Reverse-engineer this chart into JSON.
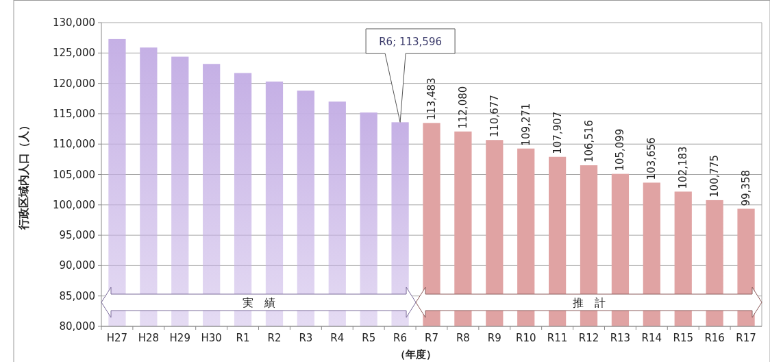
{
  "chart_data": {
    "type": "bar",
    "ylabel": "行政区域内人口（人）",
    "xlabel": "（年度）",
    "categories": [
      "H27",
      "H28",
      "H29",
      "H30",
      "R1",
      "R2",
      "R3",
      "R4",
      "R5",
      "R6",
      "R7",
      "R8",
      "R9",
      "R10",
      "R11",
      "R12",
      "R13",
      "R14",
      "R15",
      "R16",
      "R17"
    ],
    "values": [
      127300,
      125900,
      124400,
      123200,
      121700,
      120300,
      118800,
      117000,
      115200,
      113596,
      113483,
      112080,
      110677,
      109271,
      107907,
      106516,
      105099,
      103656,
      102183,
      100775,
      99358
    ],
    "colors": [
      "#c5b0e5",
      "#c5b0e5",
      "#c5b0e5",
      "#c5b0e5",
      "#c5b0e5",
      "#c5b0e5",
      "#c5b0e5",
      "#c5b0e5",
      "#c5b0e5",
      "#c5b0e5",
      "#e0a3a3",
      "#e0a3a3",
      "#e0a3a3",
      "#e0a3a3",
      "#e0a3a3",
      "#e0a3a3",
      "#e0a3a3",
      "#e0a3a3",
      "#e0a3a3",
      "#e0a3a3",
      "#e0a3a3"
    ],
    "value_labels": [
      null,
      null,
      null,
      null,
      null,
      null,
      null,
      null,
      null,
      null,
      "113,483",
      "112,080",
      "110,677",
      "109,271",
      "107,907",
      "106,516",
      "105,099",
      "103,656",
      "102,183",
      "100,775",
      "99,358"
    ],
    "annotations": [
      "R6; 113,596",
      "実　績",
      "推　計"
    ],
    "ylim": [
      80000,
      130000
    ],
    "yticks": [
      {
        "value": 80000,
        "label": "80,000"
      },
      {
        "value": 85000,
        "label": "85,000"
      },
      {
        "value": 90000,
        "label": "90,000"
      },
      {
        "value": 95000,
        "label": "95,000"
      },
      {
        "value": 100000,
        "label": "100,000"
      },
      {
        "value": 105000,
        "label": "105,000"
      },
      {
        "value": 110000,
        "label": "110,000"
      },
      {
        "value": 115000,
        "label": "115,000"
      },
      {
        "value": 120000,
        "label": "120,000"
      },
      {
        "value": 125000,
        "label": "125,000"
      },
      {
        "value": 130000,
        "label": "130,000"
      }
    ],
    "grid": "y"
  }
}
